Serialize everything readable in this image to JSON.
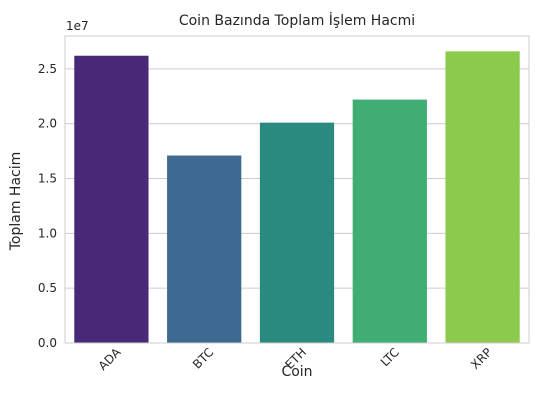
{
  "chart_data": {
    "type": "bar",
    "title": "Coin Bazında Toplam İşlem Hacmi",
    "xlabel": "Coin",
    "ylabel": "Toplam Hacim",
    "y_offset_label": "1e7",
    "categories": [
      "ADA",
      "BTC",
      "ETH",
      "LTC",
      "XRP"
    ],
    "values": [
      26200000,
      17100000,
      20100000,
      22200000,
      26600000
    ],
    "ylim": [
      0,
      28000000
    ],
    "yticks": [
      0,
      5000000,
      10000000,
      15000000,
      20000000,
      25000000
    ],
    "ytick_labels": [
      "0.0",
      "0.5",
      "1.0",
      "1.5",
      "2.0",
      "2.5"
    ],
    "grid": "horizontal",
    "colors": [
      "#482878",
      "#3e6990",
      "#2b8a7f",
      "#40ad74",
      "#8bca4c"
    ]
  }
}
